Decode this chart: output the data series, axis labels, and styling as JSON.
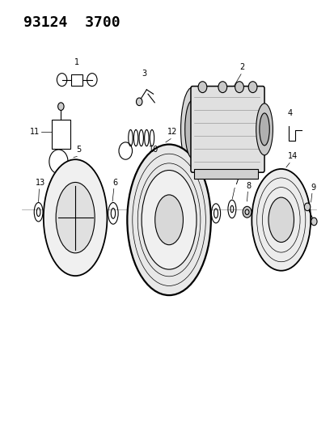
{
  "title": "93124  3700",
  "bg_color": "#ffffff",
  "line_color": "#000000",
  "title_fontsize": 13
}
